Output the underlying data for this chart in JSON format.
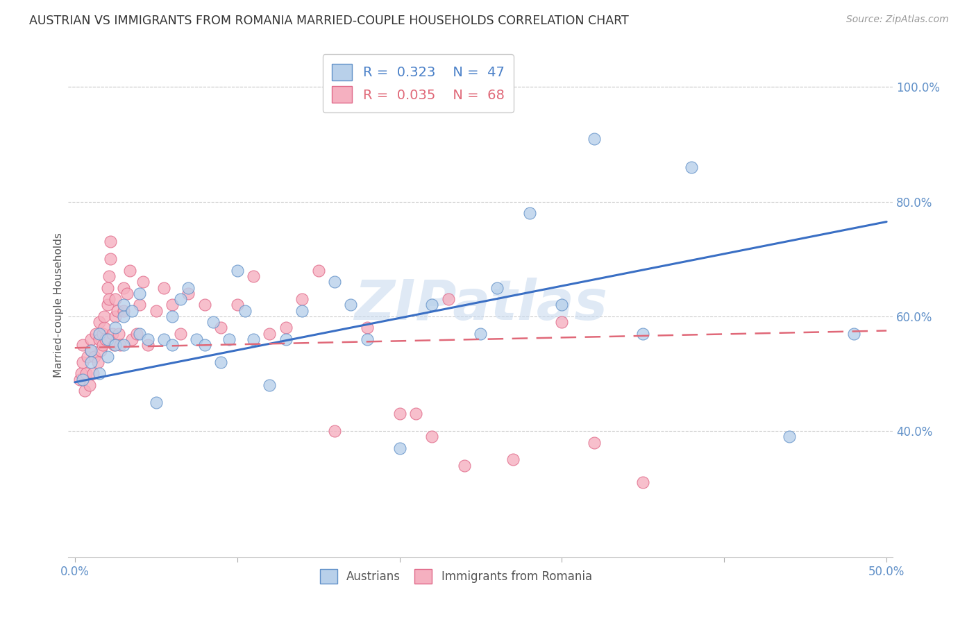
{
  "title": "AUSTRIAN VS IMMIGRANTS FROM ROMANIA MARRIED-COUPLE HOUSEHOLDS CORRELATION CHART",
  "source": "Source: ZipAtlas.com",
  "ylabel": "Married-couple Households",
  "xlim": [
    -0.004,
    0.504
  ],
  "ylim": [
    0.18,
    1.06
  ],
  "yticks": [
    0.4,
    0.6,
    0.8,
    1.0
  ],
  "ytick_labels": [
    "40.0%",
    "60.0%",
    "80.0%",
    "100.0%"
  ],
  "xticks": [
    0.0,
    0.1,
    0.2,
    0.3,
    0.4,
    0.5
  ],
  "xtick_labels": [
    "0.0%",
    "",
    "",
    "",
    "",
    "50.0%"
  ],
  "blue_R": "0.323",
  "blue_N": "47",
  "pink_R": "0.035",
  "pink_N": "68",
  "legend_label_blue": "Austrians",
  "legend_label_pink": "Immigrants from Romania",
  "blue_fill": "#b8d0ea",
  "pink_fill": "#f5b0c0",
  "blue_edge": "#6090c8",
  "pink_edge": "#e06888",
  "line_blue": "#3a6fc4",
  "line_pink": "#e06878",
  "grid_color": "#cccccc",
  "watermark_text": "ZIPatlas",
  "watermark_color": "#c5d8ee",
  "blue_scatter_x": [
    0.005,
    0.01,
    0.01,
    0.015,
    0.015,
    0.02,
    0.02,
    0.025,
    0.025,
    0.03,
    0.03,
    0.03,
    0.035,
    0.04,
    0.04,
    0.045,
    0.05,
    0.055,
    0.06,
    0.06,
    0.065,
    0.07,
    0.075,
    0.08,
    0.085,
    0.09,
    0.095,
    0.1,
    0.105,
    0.11,
    0.12,
    0.13,
    0.14,
    0.16,
    0.17,
    0.18,
    0.2,
    0.22,
    0.25,
    0.26,
    0.28,
    0.3,
    0.32,
    0.35,
    0.38,
    0.44,
    0.48
  ],
  "blue_scatter_y": [
    0.49,
    0.54,
    0.52,
    0.57,
    0.5,
    0.53,
    0.56,
    0.55,
    0.58,
    0.6,
    0.62,
    0.55,
    0.61,
    0.64,
    0.57,
    0.56,
    0.45,
    0.56,
    0.55,
    0.6,
    0.63,
    0.65,
    0.56,
    0.55,
    0.59,
    0.52,
    0.56,
    0.68,
    0.61,
    0.56,
    0.48,
    0.56,
    0.61,
    0.66,
    0.62,
    0.56,
    0.37,
    0.62,
    0.57,
    0.65,
    0.78,
    0.62,
    0.91,
    0.57,
    0.86,
    0.39,
    0.57
  ],
  "pink_scatter_x": [
    0.003,
    0.004,
    0.005,
    0.005,
    0.006,
    0.007,
    0.008,
    0.009,
    0.01,
    0.01,
    0.011,
    0.012,
    0.013,
    0.014,
    0.015,
    0.015,
    0.016,
    0.017,
    0.017,
    0.018,
    0.018,
    0.019,
    0.02,
    0.02,
    0.021,
    0.021,
    0.022,
    0.022,
    0.023,
    0.024,
    0.025,
    0.025,
    0.026,
    0.027,
    0.028,
    0.03,
    0.03,
    0.032,
    0.034,
    0.035,
    0.038,
    0.04,
    0.042,
    0.045,
    0.05,
    0.055,
    0.06,
    0.065,
    0.07,
    0.08,
    0.09,
    0.1,
    0.11,
    0.12,
    0.13,
    0.14,
    0.15,
    0.16,
    0.18,
    0.2,
    0.21,
    0.22,
    0.23,
    0.24,
    0.27,
    0.3,
    0.32,
    0.35
  ],
  "pink_scatter_y": [
    0.49,
    0.5,
    0.52,
    0.55,
    0.47,
    0.5,
    0.53,
    0.48,
    0.56,
    0.54,
    0.5,
    0.53,
    0.57,
    0.52,
    0.59,
    0.56,
    0.54,
    0.57,
    0.55,
    0.58,
    0.6,
    0.56,
    0.62,
    0.65,
    0.67,
    0.63,
    0.7,
    0.73,
    0.57,
    0.55,
    0.6,
    0.63,
    0.61,
    0.57,
    0.55,
    0.61,
    0.65,
    0.64,
    0.68,
    0.56,
    0.57,
    0.62,
    0.66,
    0.55,
    0.61,
    0.65,
    0.62,
    0.57,
    0.64,
    0.62,
    0.58,
    0.62,
    0.67,
    0.57,
    0.58,
    0.63,
    0.68,
    0.4,
    0.58,
    0.43,
    0.43,
    0.39,
    0.63,
    0.34,
    0.35,
    0.59,
    0.38,
    0.31
  ],
  "blue_line_x": [
    0.0,
    0.5
  ],
  "blue_line_y": [
    0.485,
    0.765
  ],
  "pink_line_x": [
    0.0,
    0.5
  ],
  "pink_line_y": [
    0.545,
    0.575
  ]
}
